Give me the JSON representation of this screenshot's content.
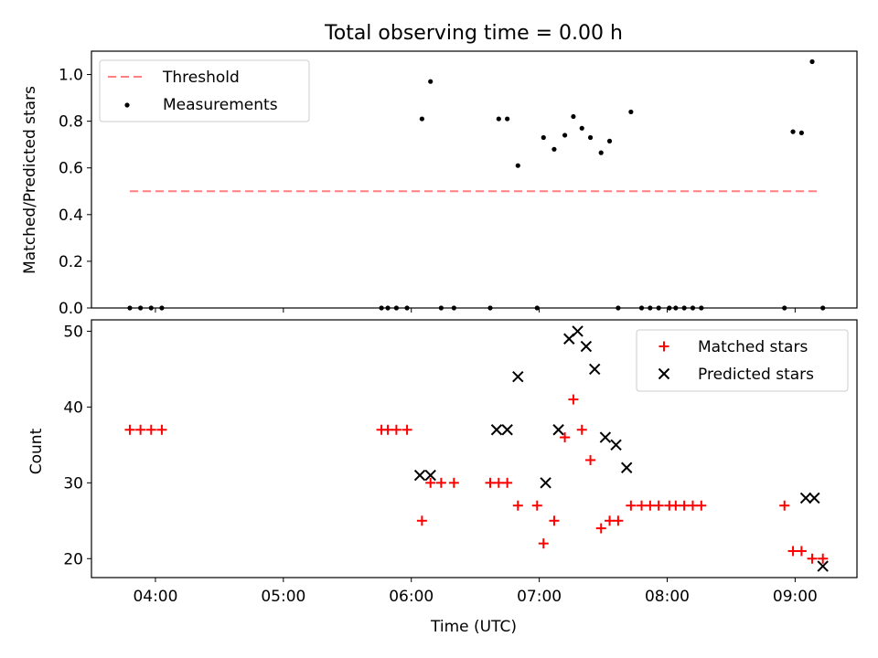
{
  "chart_data": [
    {
      "type": "scatter",
      "title": "Total observing time = 0.00 h",
      "xlabel": "",
      "ylabel": "Matched/Predicted stars",
      "ylim": [
        0,
        1.1
      ],
      "yticks": [
        0.0,
        0.2,
        0.4,
        0.6,
        0.8,
        1.0
      ],
      "ytick_labels": [
        "0.0",
        "0.2",
        "0.4",
        "0.6",
        "0.8",
        "1.0"
      ],
      "legend_placement": "upper left",
      "threshold": {
        "name": "Threshold",
        "y": 0.5,
        "x_start": "03:48",
        "x_end": "09:12",
        "color": "#ff8080",
        "style": "dashed"
      },
      "series": [
        {
          "name": "Measurements",
          "color": "#000000",
          "marker": "dot",
          "x": [
            "03:48",
            "03:53",
            "03:58",
            "04:03",
            "05:46",
            "05:49",
            "05:53",
            "05:58",
            "06:05",
            "06:09",
            "06:14",
            "06:20",
            "06:37",
            "06:41",
            "06:45",
            "06:50",
            "06:59",
            "07:02",
            "07:07",
            "07:12",
            "07:16",
            "07:20",
            "07:24",
            "07:29",
            "07:33",
            "07:37",
            "07:43",
            "07:48",
            "07:52",
            "07:56",
            "08:01",
            "08:04",
            "08:08",
            "08:12",
            "08:16",
            "08:55",
            "08:59",
            "09:03",
            "09:08",
            "09:13"
          ],
          "y": [
            0,
            0,
            0,
            0,
            0,
            0,
            0,
            0,
            0.81,
            0.97,
            0,
            0,
            0,
            0.81,
            0.81,
            0.61,
            0,
            0.73,
            0.68,
            0.74,
            0.82,
            0.77,
            0.73,
            0.665,
            0.715,
            0,
            0.84,
            0,
            0,
            0,
            0,
            0,
            0,
            0,
            0,
            0,
            0.755,
            0.75,
            1.055,
            0
          ]
        }
      ]
    },
    {
      "type": "scatter",
      "title": "",
      "xlabel": "Time (UTC)",
      "ylabel": "Count",
      "ylim": [
        17.5,
        51.5
      ],
      "yticks": [
        20,
        30,
        40,
        50
      ],
      "ytick_labels": [
        "20",
        "30",
        "40",
        "50"
      ],
      "xlim": [
        "03:30",
        "09:29"
      ],
      "xticks": [
        "04:00",
        "05:00",
        "06:00",
        "07:00",
        "08:00",
        "09:00"
      ],
      "xtick_labels": [
        "04:00",
        "05:00",
        "06:00",
        "07:00",
        "08:00",
        "09:00"
      ],
      "legend_placement": "upper right",
      "series": [
        {
          "name": "Matched stars",
          "color": "#ff0000",
          "marker": "plus",
          "x": [
            "03:48",
            "03:53",
            "03:58",
            "04:03",
            "05:46",
            "05:49",
            "05:53",
            "05:58",
            "06:05",
            "06:09",
            "06:14",
            "06:20",
            "06:37",
            "06:41",
            "06:45",
            "06:50",
            "06:59",
            "07:02",
            "07:07",
            "07:12",
            "07:16",
            "07:20",
            "07:24",
            "07:29",
            "07:33",
            "07:37",
            "07:43",
            "07:48",
            "07:52",
            "07:56",
            "08:01",
            "08:04",
            "08:08",
            "08:12",
            "08:16",
            "08:55",
            "08:59",
            "09:03",
            "09:08",
            "09:13"
          ],
          "y": [
            37,
            37,
            37,
            37,
            37,
            37,
            37,
            37,
            25,
            30,
            30,
            30,
            30,
            30,
            30,
            27,
            27,
            22,
            25,
            36,
            41,
            37,
            33,
            24,
            25,
            25,
            27,
            27,
            27,
            27,
            27,
            27,
            27,
            27,
            27,
            27,
            21,
            21,
            20,
            20
          ]
        },
        {
          "name": "Predicted stars",
          "color": "#000000",
          "marker": "x",
          "x": [
            "06:04",
            "06:09",
            "06:40",
            "06:45",
            "06:50",
            "07:03",
            "07:09",
            "07:14",
            "07:18",
            "07:22",
            "07:26",
            "07:31",
            "07:36",
            "07:41",
            "09:05",
            "09:09",
            "09:13"
          ],
          "y": [
            31,
            31,
            37,
            37,
            44,
            30,
            37,
            49,
            50,
            48,
            45,
            36,
            35,
            32,
            28,
            28,
            19
          ]
        }
      ]
    }
  ]
}
